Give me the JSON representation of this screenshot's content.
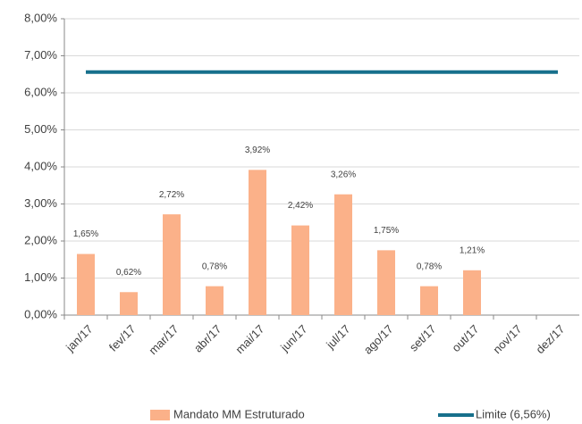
{
  "chart_data": {
    "type": "bar",
    "categories": [
      "jan/17",
      "fev/17",
      "mar/17",
      "abr/17",
      "mai/17",
      "jun/17",
      "jul/17",
      "ago/17",
      "set/17",
      "out/17",
      "nov/17",
      "dez/17"
    ],
    "series": [
      {
        "name": "Mandato MM Estruturado",
        "type": "bar",
        "color": "#fbb189",
        "values": [
          1.65,
          0.62,
          2.72,
          0.78,
          3.92,
          2.42,
          3.26,
          1.75,
          0.78,
          1.21,
          null,
          null
        ],
        "value_labels": [
          "1,65%",
          "0,62%",
          "2,72%",
          "0,78%",
          "3,92%",
          "2,42%",
          "3,26%",
          "1,75%",
          "0,78%",
          "1,21%",
          null,
          null
        ]
      },
      {
        "name": "Limite (6,56%)",
        "type": "line",
        "color": "#17708c",
        "values": [
          6.56,
          6.56,
          6.56,
          6.56,
          6.56,
          6.56,
          6.56,
          6.56,
          6.56,
          6.56,
          6.56,
          6.56
        ]
      }
    ],
    "ylim": [
      0,
      8
    ],
    "yticks": [
      {
        "value": 0,
        "label": "0,00%"
      },
      {
        "value": 1,
        "label": "1,00%"
      },
      {
        "value": 2,
        "label": "2,00%"
      },
      {
        "value": 3,
        "label": "3,00%"
      },
      {
        "value": 4,
        "label": "4,00%"
      },
      {
        "value": 5,
        "label": "5,00%"
      },
      {
        "value": 6,
        "label": "6,00%"
      },
      {
        "value": 7,
        "label": "7,00%"
      },
      {
        "value": 8,
        "label": "8,00%"
      }
    ],
    "grid": true,
    "legend": "bottom"
  }
}
